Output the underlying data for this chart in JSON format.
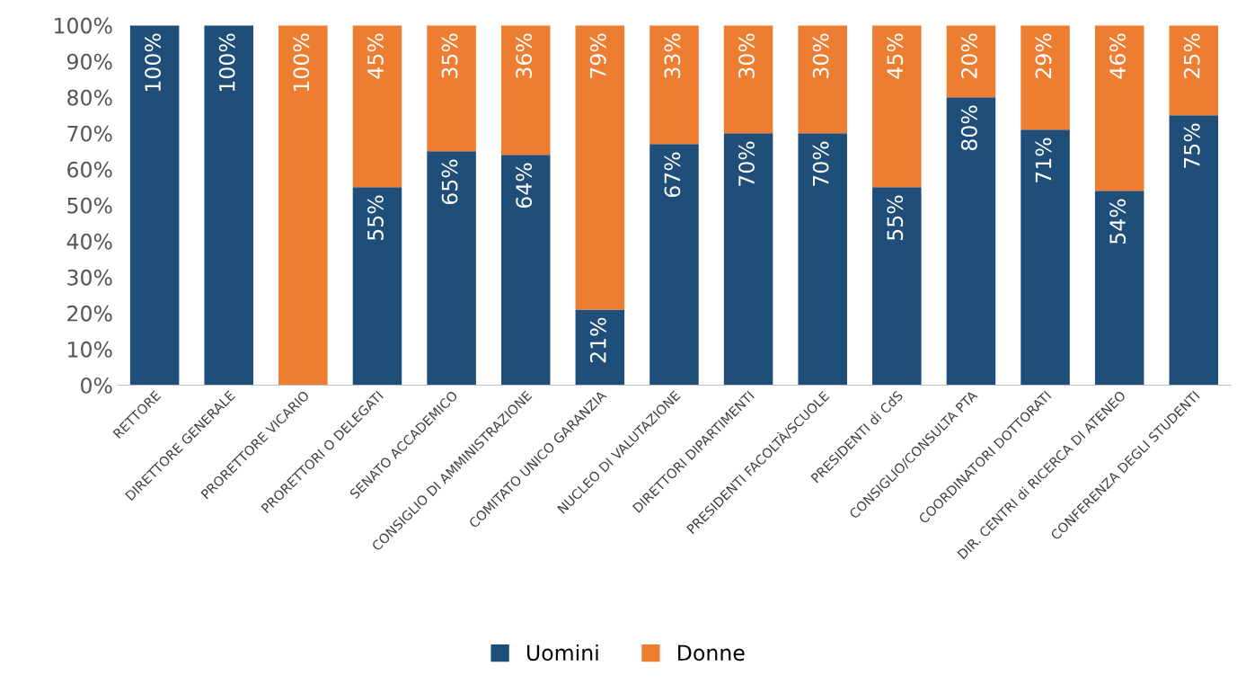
{
  "chart_data": {
    "type": "bar",
    "stacked": true,
    "categories": [
      "RETTORE",
      "DIRETTORE GENERALE",
      "PRORETTORE VICARIO",
      "PRORETTORI O DELEGATI",
      "SENATO ACCADEMICO",
      "CONSIGLIO DI AMMINISTRAZIONE",
      "COMITATO UNICO GARANZIA",
      "NUCLEO DI VALUTAZIONE",
      "DIRETTORI DIPARTIMENTI",
      "PRESIDENTI FACOLTÀ/SCUOLE",
      "PRESIDENTI di CdS",
      "CONSIGLIO/CONSULTA PTA",
      "COORDINATORI DOTTORATI",
      "DIR. CENTRI di RICERCA DI ATENEO",
      "CONFERENZA DEGLI STUDENTI"
    ],
    "series": [
      {
        "name": "Uomini",
        "color": "#1f4e79",
        "values": [
          100,
          100,
          0,
          55,
          65,
          64,
          21,
          67,
          70,
          70,
          55,
          80,
          71,
          54,
          75
        ],
        "value_labels": [
          "100%",
          "100%",
          null,
          "55%",
          "65%",
          "64%",
          "21%",
          "67%",
          "70%",
          "70%",
          "55%",
          "80%",
          "71%",
          "54%",
          "75%"
        ]
      },
      {
        "name": "Donne",
        "color": "#ed7d31",
        "values": [
          0,
          0,
          100,
          45,
          35,
          36,
          79,
          33,
          30,
          30,
          45,
          20,
          29,
          46,
          25
        ],
        "value_labels": [
          null,
          null,
          "100%",
          "45%",
          "35%",
          "36%",
          "79%",
          "33%",
          "30%",
          "30%",
          "45%",
          "20%",
          "29%",
          "46%",
          "25%"
        ]
      }
    ],
    "ylim": [
      0,
      100
    ],
    "yticks": [
      {
        "value": 0,
        "label": "0%"
      },
      {
        "value": 10,
        "label": "10%"
      },
      {
        "value": 20,
        "label": "20%"
      },
      {
        "value": 30,
        "label": "30%"
      },
      {
        "value": 40,
        "label": "40%"
      },
      {
        "value": 50,
        "label": "50%"
      },
      {
        "value": 60,
        "label": "60%"
      },
      {
        "value": 70,
        "label": "70%"
      },
      {
        "value": 80,
        "label": "80%"
      },
      {
        "value": 90,
        "label": "90%"
      },
      {
        "value": 100,
        "label": "100%"
      }
    ],
    "grid": false,
    "legend": "bottom"
  }
}
